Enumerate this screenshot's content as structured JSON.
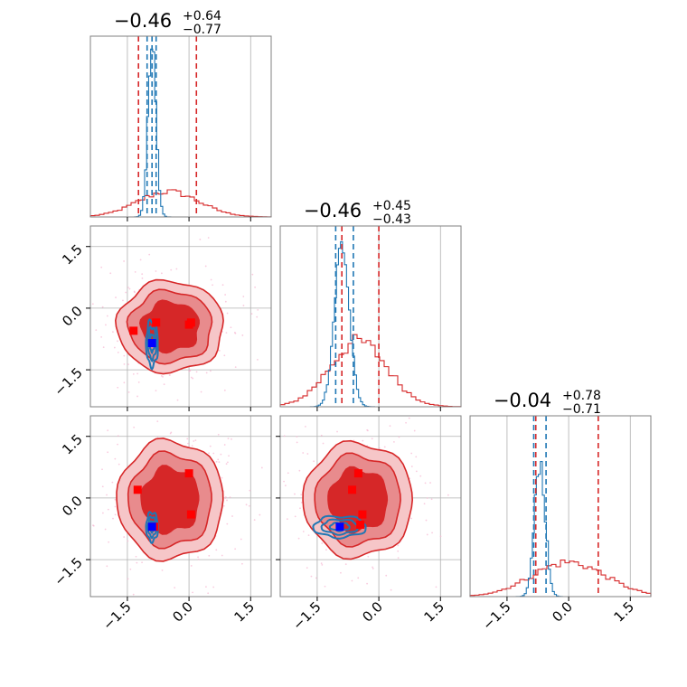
{
  "chart_data": {
    "type": "corner",
    "params": [
      "p0",
      "p1",
      "p2"
    ],
    "axis_range": [
      -2.4,
      2.0
    ],
    "ticks": [
      -1.5,
      0.0,
      1.5
    ],
    "tick_labels": [
      "−1.5",
      "0.0",
      "1.5"
    ],
    "grid": true,
    "colors": {
      "wide": "#d62728",
      "narrow": "#1f77b4",
      "marker_wide": "#ff0000",
      "marker_narrow": "#0000ff",
      "scatter": "#f7b6d2"
    },
    "titles": [
      {
        "param": "p0",
        "median": "−0.46",
        "plus": "+0.64",
        "minus": "−0.77"
      },
      {
        "param": "p1",
        "median": "−0.46",
        "plus": "+0.45",
        "minus": "−0.43"
      },
      {
        "param": "p2",
        "median": "−0.04",
        "plus": "+0.78",
        "minus": "−0.71"
      }
    ],
    "marginals": [
      {
        "param": "p0",
        "wide": {
          "center": -0.5,
          "sigma": 0.75,
          "lines": [
            -1.23,
            0.18
          ]
        },
        "narrow": {
          "center": -0.9,
          "sigma": 0.1,
          "lines": [
            -1.02,
            -0.9,
            -0.8
          ]
        }
      },
      {
        "param": "p1",
        "wide": {
          "center": -0.5,
          "sigma": 0.7,
          "lines": [
            -0.9,
            0.0
          ]
        },
        "narrow": {
          "center": -0.9,
          "sigma": 0.18,
          "lines": [
            -1.05,
            -0.62
          ]
        }
      },
      {
        "param": "p2",
        "wide": {
          "center": 0.0,
          "sigma": 0.9,
          "lines": [
            -0.8,
            0.72
          ]
        },
        "narrow": {
          "center": -0.7,
          "sigma": 0.13,
          "lines": [
            -0.85,
            -0.55
          ]
        }
      }
    ],
    "pairs": [
      {
        "x": "p0",
        "y": "p1",
        "wide_center": [
          -0.45,
          -0.45
        ],
        "wide_sigma": [
          0.7,
          0.6
        ],
        "narrow_center": [
          -0.9,
          -0.85
        ],
        "narrow_sigma": [
          0.09,
          0.35
        ],
        "red_points": [
          [
            -1.35,
            -0.55
          ],
          [
            -0.8,
            -0.35
          ],
          [
            0.0,
            -0.4
          ],
          [
            0.05,
            -0.35
          ]
        ],
        "blue_point": [
          -0.9,
          -0.85
        ]
      },
      {
        "x": "p0",
        "y": "p2",
        "wide_center": [
          -0.45,
          -0.05
        ],
        "wide_sigma": [
          0.7,
          0.78
        ],
        "narrow_center": [
          -0.9,
          -0.7
        ],
        "narrow_sigma": [
          0.09,
          0.22
        ],
        "red_points": [
          [
            -1.25,
            0.2
          ],
          [
            0.0,
            0.6
          ],
          [
            0.05,
            -0.4
          ],
          [
            -0.85,
            -0.7
          ]
        ],
        "blue_point": [
          -0.9,
          -0.7
        ]
      },
      {
        "x": "p1",
        "y": "p2",
        "wide_center": [
          -0.5,
          -0.05
        ],
        "wide_sigma": [
          0.72,
          0.75
        ],
        "narrow_center": [
          -0.95,
          -0.7
        ],
        "narrow_sigma": [
          0.4,
          0.16
        ],
        "red_points": [
          [
            -0.5,
            0.6
          ],
          [
            -0.65,
            0.2
          ],
          [
            -0.4,
            -0.4
          ],
          [
            -0.45,
            -0.65
          ]
        ],
        "blue_point": [
          -0.95,
          -0.7
        ]
      }
    ]
  }
}
